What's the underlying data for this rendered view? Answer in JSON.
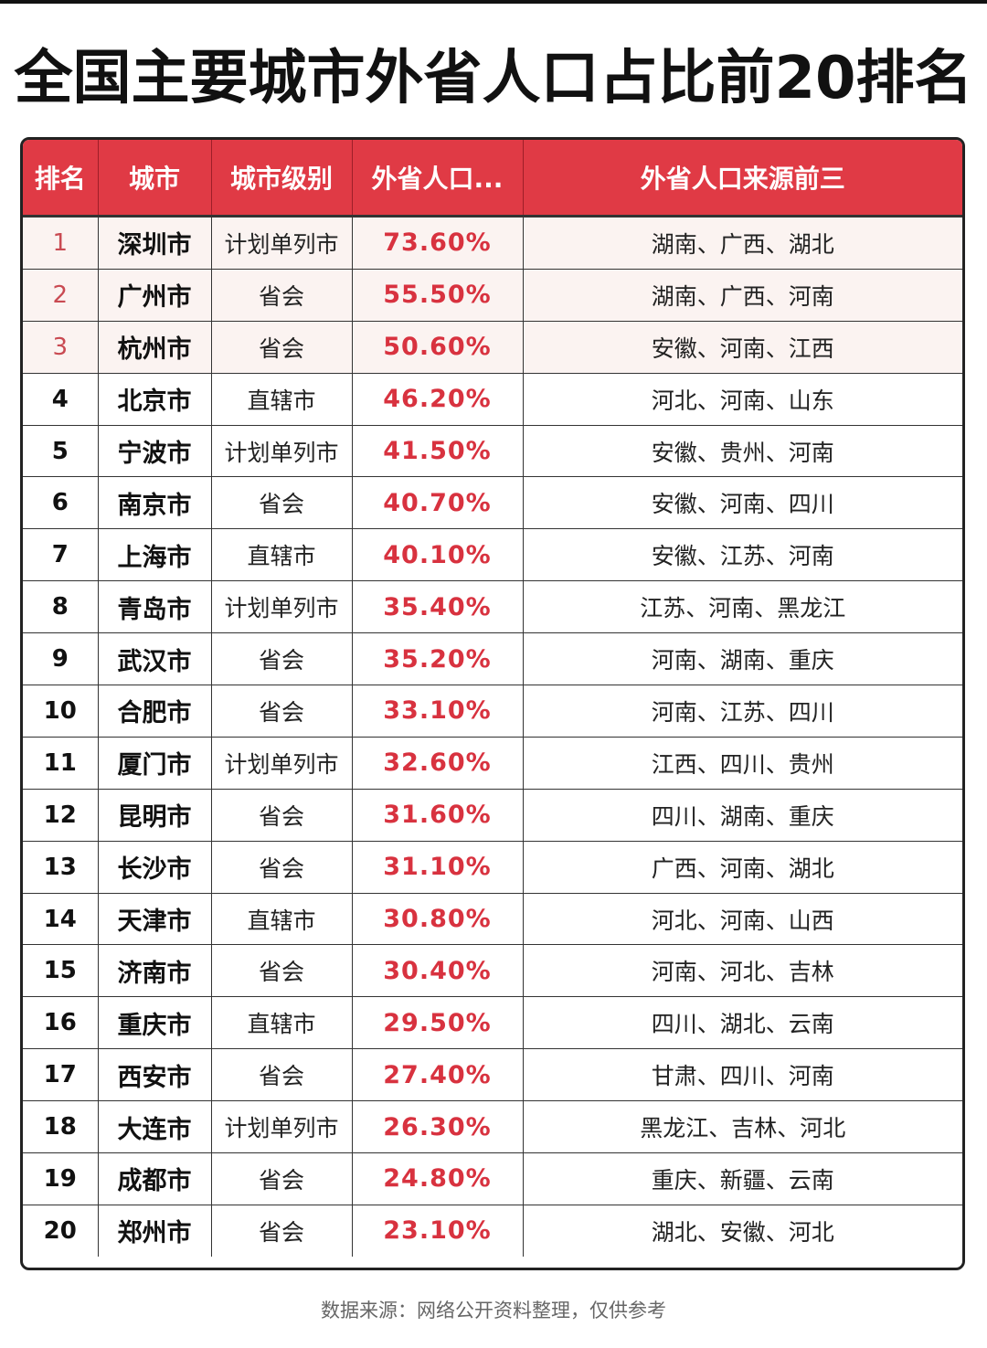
{
  "title": "全国主要城市外省人口占比前20排名",
  "table": {
    "headers": [
      "排名",
      "城市",
      "城市级别",
      "外省人口...",
      "外省人口来源前三"
    ],
    "rows": [
      {
        "rank": "1",
        "city": "深圳市",
        "level": "计划单列市",
        "pct": "73.60%",
        "sources": "湖南、广西、湖北"
      },
      {
        "rank": "2",
        "city": "广州市",
        "level": "省会",
        "pct": "55.50%",
        "sources": "湖南、广西、河南"
      },
      {
        "rank": "3",
        "city": "杭州市",
        "level": "省会",
        "pct": "50.60%",
        "sources": "安徽、河南、江西"
      },
      {
        "rank": "4",
        "city": "北京市",
        "level": "直辖市",
        "pct": "46.20%",
        "sources": "河北、河南、山东"
      },
      {
        "rank": "5",
        "city": "宁波市",
        "level": "计划单列市",
        "pct": "41.50%",
        "sources": "安徽、贵州、河南"
      },
      {
        "rank": "6",
        "city": "南京市",
        "level": "省会",
        "pct": "40.70%",
        "sources": "安徽、河南、四川"
      },
      {
        "rank": "7",
        "city": "上海市",
        "level": "直辖市",
        "pct": "40.10%",
        "sources": "安徽、江苏、河南"
      },
      {
        "rank": "8",
        "city": "青岛市",
        "level": "计划单列市",
        "pct": "35.40%",
        "sources": "江苏、河南、黑龙江"
      },
      {
        "rank": "9",
        "city": "武汉市",
        "level": "省会",
        "pct": "35.20%",
        "sources": "河南、湖南、重庆"
      },
      {
        "rank": "10",
        "city": "合肥市",
        "level": "省会",
        "pct": "33.10%",
        "sources": "河南、江苏、四川"
      },
      {
        "rank": "11",
        "city": "厦门市",
        "level": "计划单列市",
        "pct": "32.60%",
        "sources": "江西、四川、贵州"
      },
      {
        "rank": "12",
        "city": "昆明市",
        "level": "省会",
        "pct": "31.60%",
        "sources": "四川、湖南、重庆"
      },
      {
        "rank": "13",
        "city": "长沙市",
        "level": "省会",
        "pct": "31.10%",
        "sources": "广西、河南、湖北"
      },
      {
        "rank": "14",
        "city": "天津市",
        "level": "直辖市",
        "pct": "30.80%",
        "sources": "河北、河南、山西"
      },
      {
        "rank": "15",
        "city": "济南市",
        "level": "省会",
        "pct": "30.40%",
        "sources": "河南、河北、吉林"
      },
      {
        "rank": "16",
        "city": "重庆市",
        "level": "直辖市",
        "pct": "29.50%",
        "sources": "四川、湖北、云南"
      },
      {
        "rank": "17",
        "city": "西安市",
        "level": "省会",
        "pct": "27.40%",
        "sources": "甘肃、四川、河南"
      },
      {
        "rank": "18",
        "city": "大连市",
        "level": "计划单列市",
        "pct": "26.30%",
        "sources": "黑龙江、吉林、河北"
      },
      {
        "rank": "19",
        "city": "成都市",
        "level": "省会",
        "pct": "24.80%",
        "sources": "重庆、新疆、云南"
      },
      {
        "rank": "20",
        "city": "郑州市",
        "level": "省会",
        "pct": "23.10%",
        "sources": "湖北、安徽、河北"
      }
    ]
  },
  "footer": "数据来源：网络公开资料整理，仅供参考",
  "colors": {
    "header_bg": "#e03a45",
    "percent_text": "#d8323f",
    "top3_bg": "#fbf3f1"
  }
}
